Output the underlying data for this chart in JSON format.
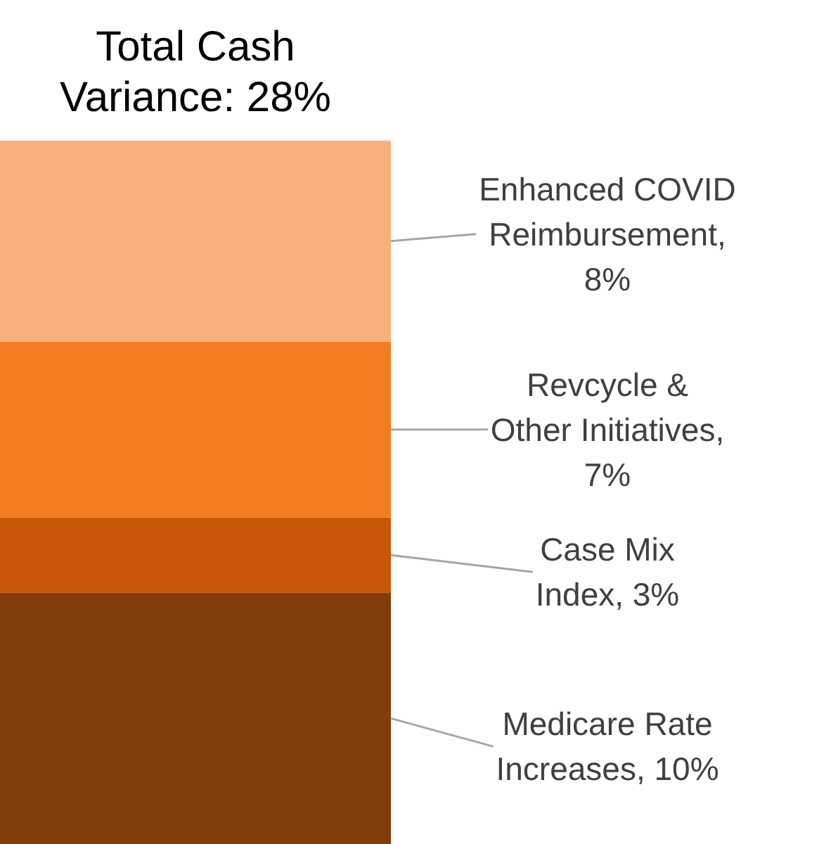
{
  "chart_data": {
    "type": "bar",
    "stacked": true,
    "title": "Total Cash\nVariance: 28%",
    "categories": [
      null
    ],
    "series": [
      {
        "color": "#833c0b",
        "values": [
          10
        ],
        "value_labels": [
          "Medicare Rate\nIncreases, 10%"
        ]
      },
      {
        "color": "#c8570a",
        "values": [
          3
        ],
        "value_labels": [
          "Case Mix\nIndex, 3%"
        ]
      },
      {
        "color": "#f47c20",
        "values": [
          7
        ],
        "value_labels": [
          "Revcycle &\nOther Initiatives,\n7%"
        ]
      },
      {
        "color": "#f9b07a",
        "values": [
          8
        ],
        "value_labels": [
          "Enhanced COVID\nReimbursement,\n8%"
        ]
      }
    ]
  }
}
